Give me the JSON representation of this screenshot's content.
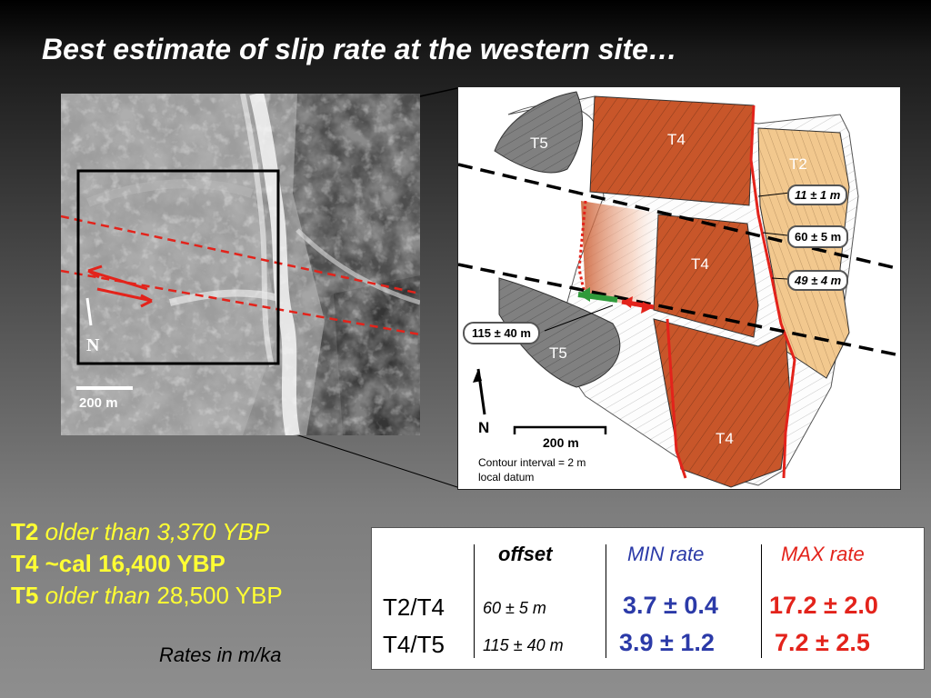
{
  "slide": {
    "title": "Best estimate of slip rate at the western site…"
  },
  "photo": {
    "north_label": "N",
    "scale_label": "200 m"
  },
  "map": {
    "terrace_labels": [
      "T5",
      "T4",
      "T2",
      "T4",
      "T5",
      "T4"
    ],
    "offset_callouts": [
      "11 ± 1 m",
      "60 ± 5 m",
      "49 ± 4 m",
      "115 ± 40 m"
    ],
    "north_label": "N",
    "scale_label": "200 m",
    "contour_note": "Contour interval = 2 m",
    "datum_note": "local datum",
    "colors": {
      "T4": "#c8562a",
      "T2": "#f2c88e",
      "T5": "#808080",
      "fault": "#e3231b",
      "green_arrow": "#2f9a3a"
    }
  },
  "ages": [
    {
      "terrace": "T2",
      "text": "older than 3,370 YBP"
    },
    {
      "terrace": "T4",
      "prefix": "~",
      "text": "cal 16,400 YBP"
    },
    {
      "terrace": "T5",
      "text_italic": "older than",
      "text": "28,500 YBP"
    }
  ],
  "rates_note": "Rates in m/ka",
  "rates_table": {
    "headers": {
      "offset": "offset",
      "min": "MIN rate",
      "max": "MAX rate"
    },
    "rows": [
      {
        "pair": "T2/T4",
        "offset": "60 ± 5 m",
        "min": "3.7 ± 0.4",
        "max": "17.2 ± 2.0"
      },
      {
        "pair": "T4/T5",
        "offset": "115 ± 40 m",
        "min": "3.9 ± 1.2",
        "max": "7.2 ± 2.5"
      }
    ],
    "colors": {
      "min": "#2b3aa8",
      "max": "#e3231b"
    }
  }
}
